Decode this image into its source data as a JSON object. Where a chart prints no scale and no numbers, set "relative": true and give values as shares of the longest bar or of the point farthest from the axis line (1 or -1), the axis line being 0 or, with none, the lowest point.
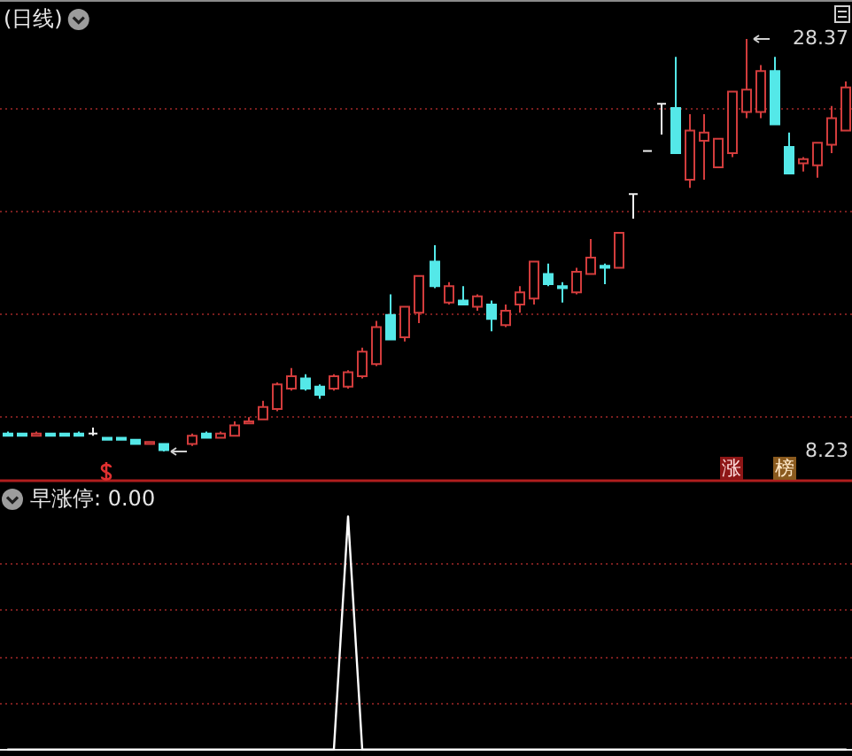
{
  "chart_data": [
    {
      "type": "candlestick",
      "title": "(日线)",
      "categories": [
        null,
        null,
        null,
        null,
        null,
        null,
        null,
        null,
        null,
        null,
        null,
        null,
        null,
        null,
        null,
        null,
        null,
        null,
        null,
        null,
        null,
        null,
        null,
        null,
        null,
        null,
        null,
        null,
        null,
        null,
        null,
        null,
        null,
        null,
        null,
        null,
        null,
        null,
        null,
        null,
        null,
        null,
        null,
        null,
        null,
        null,
        null,
        null,
        null,
        null,
        null,
        null,
        null,
        null,
        null,
        null,
        null,
        null,
        null,
        null
      ],
      "ohlc": [
        [
          9.1,
          9.2,
          9.0,
          9.0
        ],
        [
          9.1,
          9.1,
          9.0,
          9.0
        ],
        [
          9.0,
          9.2,
          9.0,
          9.1
        ],
        [
          9.1,
          9.1,
          9.0,
          9.0
        ],
        [
          9.1,
          9.1,
          9.0,
          9.0
        ],
        [
          9.1,
          9.2,
          9.0,
          9.0
        ],
        [
          9.1,
          9.4,
          9.0,
          9.1
        ],
        [
          8.9,
          8.9,
          8.8,
          8.8
        ],
        [
          8.9,
          8.9,
          8.8,
          8.8
        ],
        [
          8.8,
          8.8,
          8.6,
          8.6
        ],
        [
          8.6,
          8.7,
          8.6,
          8.7
        ],
        [
          8.6,
          8.6,
          8.23,
          8.3
        ],
        null,
        [
          8.6,
          9.1,
          8.5,
          9.0
        ],
        [
          9.1,
          9.2,
          8.9,
          8.9
        ],
        [
          8.9,
          9.2,
          8.9,
          9.1
        ],
        [
          9.0,
          9.7,
          9.0,
          9.5
        ],
        [
          9.6,
          9.9,
          9.6,
          9.7
        ],
        [
          9.8,
          10.7,
          9.8,
          10.4
        ],
        [
          10.3,
          11.6,
          10.2,
          11.5
        ],
        [
          11.3,
          12.3,
          11.2,
          11.9
        ],
        [
          11.8,
          12.0,
          11.2,
          11.3
        ],
        [
          11.4,
          11.5,
          10.8,
          11.0
        ],
        [
          11.3,
          12.0,
          11.2,
          11.9
        ],
        [
          11.4,
          12.2,
          11.3,
          12.1
        ],
        [
          11.9,
          13.3,
          11.8,
          13.1
        ],
        [
          12.5,
          14.6,
          12.4,
          14.3
        ],
        [
          14.9,
          15.9,
          13.7,
          13.7
        ],
        [
          13.8,
          15.3,
          13.6,
          15.3
        ],
        [
          15.0,
          16.8,
          14.5,
          16.8
        ],
        [
          17.5,
          18.3,
          16.2,
          16.3
        ],
        [
          15.5,
          16.5,
          15.4,
          16.3
        ],
        [
          15.6,
          16.3,
          15.4,
          15.4
        ],
        [
          15.3,
          15.9,
          15.1,
          15.8
        ],
        [
          15.4,
          15.6,
          14.1,
          14.7
        ],
        [
          14.4,
          15.4,
          14.3,
          15.1
        ],
        [
          15.4,
          16.3,
          15.0,
          16.0
        ],
        [
          15.7,
          17.5,
          15.4,
          17.5
        ],
        [
          16.9,
          17.4,
          16.3,
          16.4
        ],
        [
          16.3,
          16.5,
          15.5,
          16.2
        ],
        [
          16.0,
          17.2,
          15.9,
          17.0
        ],
        [
          16.9,
          18.6,
          16.9,
          17.7
        ],
        [
          17.3,
          17.4,
          16.4,
          17.2
        ],
        [
          17.2,
          18.9,
          17.2,
          18.9
        ],
        [
          20.8,
          20.8,
          19.6,
          20.8
        ],
        [
          22.9,
          22.9,
          22.9,
          22.9
        ],
        [
          25.2,
          25.2,
          23.7,
          25.2
        ],
        [
          25.0,
          27.5,
          22.8,
          22.8
        ],
        [
          21.5,
          24.7,
          21.1,
          23.9
        ],
        [
          23.4,
          24.7,
          21.5,
          23.8
        ],
        [
          22.1,
          23.5,
          22.1,
          23.5
        ],
        [
          22.8,
          25.8,
          22.6,
          25.8
        ],
        [
          24.8,
          28.37,
          24.5,
          25.9
        ],
        [
          24.8,
          27.1,
          24.5,
          26.8
        ],
        [
          26.8,
          27.5,
          24.2,
          24.2
        ],
        [
          23.1,
          23.8,
          21.8,
          21.8
        ],
        [
          22.3,
          22.6,
          21.9,
          22.5
        ],
        [
          22.2,
          23.3,
          21.6,
          23.3
        ],
        [
          23.2,
          25.1,
          22.8,
          24.5
        ],
        [
          23.9,
          26.3,
          23.9,
          26.0
        ]
      ],
      "colors": [
        "#54e8e8",
        "#54e8e8",
        "#d23c3c",
        "#54e8e8",
        "#54e8e8",
        "#54e8e8",
        "#f0f0f0",
        "#54e8e8",
        "#54e8e8",
        "#54e8e8",
        "#d23c3c",
        "#54e8e8",
        null,
        "#d23c3c",
        "#54e8e8",
        "#d23c3c",
        "#d23c3c",
        "#d23c3c",
        "#d23c3c",
        "#d23c3c",
        "#d23c3c",
        "#54e8e8",
        "#54e8e8",
        "#d23c3c",
        "#d23c3c",
        "#d23c3c",
        "#d23c3c",
        "#54e8e8",
        "#d23c3c",
        "#d23c3c",
        "#54e8e8",
        "#d23c3c",
        "#54e8e8",
        "#d23c3c",
        "#54e8e8",
        "#d23c3c",
        "#d23c3c",
        "#d23c3c",
        "#54e8e8",
        "#54e8e8",
        "#d23c3c",
        "#d23c3c",
        "#54e8e8",
        "#d23c3c",
        "#f0f0f0",
        "#f0f0f0",
        "#f0f0f0",
        "#54e8e8",
        "#d23c3c",
        "#d23c3c",
        "#d23c3c",
        "#d23c3c",
        "#d23c3c",
        "#d23c3c",
        "#54e8e8",
        "#54e8e8",
        "#d23c3c",
        "#d23c3c",
        "#d23c3c",
        "#d23c3c"
      ],
      "ylim": [
        8.23,
        28.37
      ],
      "yticks": [
        {
          "value": 8.23,
          "label": "8.23"
        },
        {
          "value": 28.37,
          "label": "28.37"
        }
      ],
      "ref_lines": [
        {
          "axis": "y",
          "value": 10,
          "color": "#7a1e1e",
          "line_style": "dotted"
        },
        {
          "axis": "y",
          "value": 15,
          "color": "#7a1e1e",
          "line_style": "dotted"
        },
        {
          "axis": "y",
          "value": 20,
          "color": "#7a1e1e",
          "line_style": "dotted"
        },
        {
          "axis": "y",
          "value": 25,
          "color": "#7a1e1e",
          "line_style": "dotted"
        }
      ],
      "annotations": [
        "涨",
        "榜"
      ]
    },
    {
      "type": "line",
      "title": "早涨停: 0.00",
      "relative": true,
      "categories": [
        null,
        null,
        null,
        null,
        null,
        null,
        null,
        null,
        null,
        null,
        null,
        null,
        null,
        null,
        null,
        null,
        null,
        null,
        null,
        null,
        null,
        null,
        null,
        null,
        null,
        null,
        null,
        null,
        null,
        null,
        null,
        null,
        null,
        null,
        null,
        null,
        null,
        null,
        null,
        null,
        null,
        null,
        null,
        null,
        null,
        null,
        null,
        null,
        null,
        null,
        null,
        null,
        null,
        null,
        null,
        null,
        null,
        null,
        null,
        null
      ],
      "series": [
        {
          "color": "#ffffff",
          "values": [
            0,
            0,
            0,
            0,
            0,
            0,
            0,
            0,
            0,
            0,
            0,
            0,
            0,
            0,
            0,
            0,
            0,
            0,
            0,
            0,
            0,
            0,
            0,
            0,
            1,
            0,
            0,
            0,
            0,
            0,
            0,
            0,
            0,
            0,
            0,
            0,
            0,
            0,
            0,
            0,
            0,
            0,
            0,
            0,
            0,
            0,
            0,
            0,
            0,
            0,
            0,
            0,
            0,
            0,
            0,
            0,
            0,
            0,
            0,
            0
          ]
        }
      ],
      "ref_lines": [
        {
          "axis": "y",
          "value": 0.2,
          "color": "#7a1e1e",
          "line_style": "dotted"
        },
        {
          "axis": "y",
          "value": 0.4,
          "color": "#7a1e1e",
          "line_style": "dotted"
        },
        {
          "axis": "y",
          "value": 0.6,
          "color": "#7a1e1e",
          "line_style": "dotted"
        },
        {
          "axis": "y",
          "value": 0.8,
          "color": "#7a1e1e",
          "line_style": "dotted"
        }
      ]
    }
  ]
}
